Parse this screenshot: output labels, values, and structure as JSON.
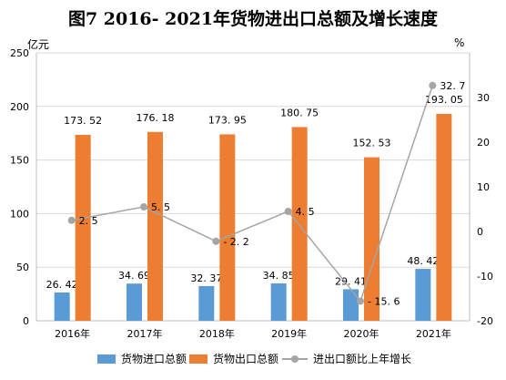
{
  "chart_data": {
    "type": "bar",
    "title": "图7 2016- 2021年货物进出口总额及增长速度",
    "y_left_unit": "亿元",
    "y_right_unit": "%",
    "categories": [
      "2016年",
      "2017年",
      "2018年",
      "2019年",
      "2020年",
      "2021年"
    ],
    "ylim_left": [
      0,
      250
    ],
    "yticks_left": [
      "0",
      "50",
      "100",
      "150",
      "200",
      "250"
    ],
    "ylim_right": [
      -20,
      40
    ],
    "yticks_right": [
      "-20",
      "-10",
      "0",
      "10",
      "20",
      "30"
    ],
    "series": [
      {
        "name": "货物进口总额",
        "type": "bar",
        "axis": "left",
        "color": "#5b9bd5",
        "values": [
          26.42,
          34.69,
          32.37,
          34.85,
          29.41,
          48.42
        ],
        "labels": [
          "26. 42",
          "34. 69",
          "32. 37",
          "34. 85",
          "29. 41",
          "48. 42"
        ]
      },
      {
        "name": "货物出口总额",
        "type": "bar",
        "axis": "left",
        "color": "#ed7d31",
        "values": [
          173.52,
          176.18,
          173.95,
          180.75,
          152.53,
          193.05
        ],
        "labels": [
          "173. 52",
          "176. 18",
          "173. 95",
          "180. 75",
          "152. 53",
          "193. 05"
        ]
      },
      {
        "name": "进出口额比上年增长",
        "type": "line",
        "axis": "right",
        "color": "#a5a5a5",
        "values": [
          2.5,
          5.5,
          -2.2,
          4.5,
          -15.6,
          32.7
        ],
        "labels": [
          "2. 5",
          "5. 5",
          "- 2. 2",
          "4. 5",
          "- 15. 6",
          "32. 7"
        ]
      }
    ],
    "grid": true,
    "legend": "bottom"
  }
}
